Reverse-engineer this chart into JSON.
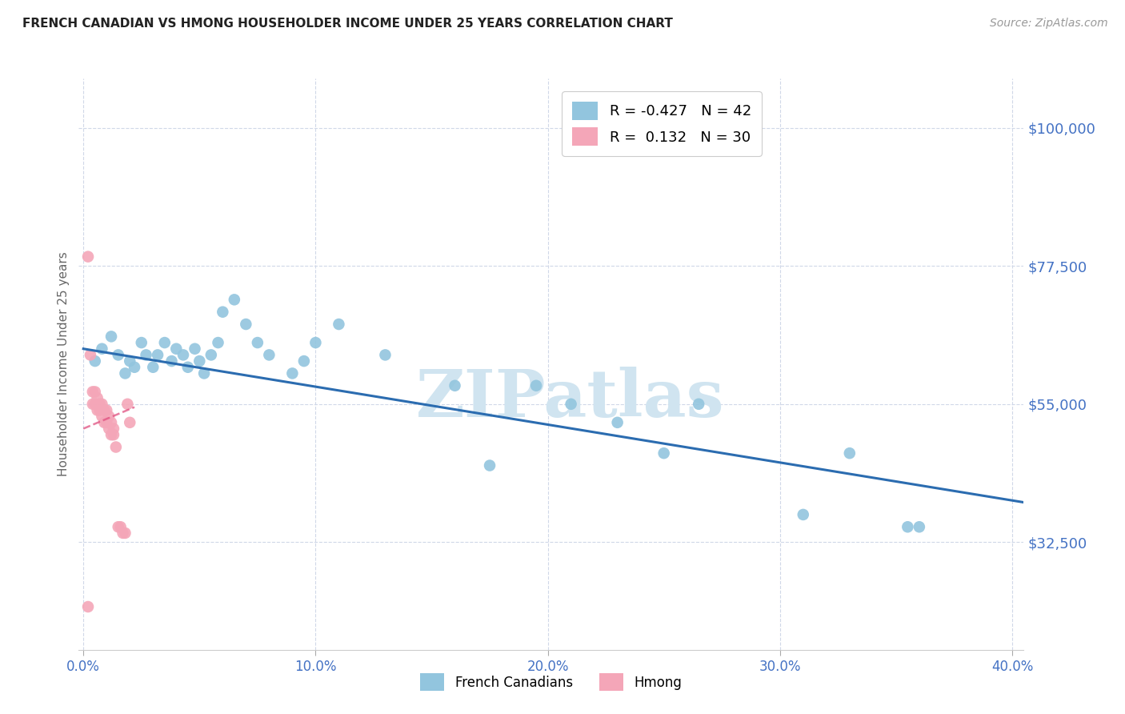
{
  "title": "FRENCH CANADIAN VS HMONG HOUSEHOLDER INCOME UNDER 25 YEARS CORRELATION CHART",
  "source": "Source: ZipAtlas.com",
  "ylabel": "Householder Income Under 25 years",
  "ytick_labels": [
    "$32,500",
    "$55,000",
    "$77,500",
    "$100,000"
  ],
  "ytick_vals": [
    32500,
    55000,
    77500,
    100000
  ],
  "ymin": 15000,
  "ymax": 108000,
  "xmin": -0.002,
  "xmax": 0.405,
  "blue_R": "-0.427",
  "blue_N": "42",
  "pink_R": "0.132",
  "pink_N": "30",
  "blue_scatter_x": [
    0.005,
    0.008,
    0.012,
    0.015,
    0.018,
    0.02,
    0.022,
    0.025,
    0.027,
    0.03,
    0.032,
    0.035,
    0.038,
    0.04,
    0.043,
    0.045,
    0.048,
    0.05,
    0.052,
    0.055,
    0.058,
    0.06,
    0.065,
    0.07,
    0.075,
    0.08,
    0.09,
    0.095,
    0.1,
    0.11,
    0.13,
    0.16,
    0.175,
    0.195,
    0.21,
    0.23,
    0.25,
    0.265,
    0.31,
    0.33,
    0.355,
    0.36
  ],
  "blue_scatter_y": [
    62000,
    64000,
    66000,
    63000,
    60000,
    62000,
    61000,
    65000,
    63000,
    61000,
    63000,
    65000,
    62000,
    64000,
    63000,
    61000,
    64000,
    62000,
    60000,
    63000,
    65000,
    70000,
    72000,
    68000,
    65000,
    63000,
    60000,
    62000,
    65000,
    68000,
    63000,
    58000,
    45000,
    58000,
    55000,
    52000,
    47000,
    55000,
    37000,
    47000,
    35000,
    35000
  ],
  "pink_scatter_x": [
    0.002,
    0.003,
    0.004,
    0.004,
    0.005,
    0.005,
    0.006,
    0.006,
    0.007,
    0.007,
    0.008,
    0.008,
    0.009,
    0.009,
    0.01,
    0.01,
    0.011,
    0.011,
    0.012,
    0.012,
    0.013,
    0.013,
    0.014,
    0.015,
    0.016,
    0.017,
    0.018,
    0.019,
    0.02,
    0.002
  ],
  "pink_scatter_y": [
    79000,
    63000,
    57000,
    55000,
    57000,
    55000,
    54000,
    56000,
    55000,
    54000,
    53000,
    55000,
    54000,
    52000,
    54000,
    52000,
    53000,
    51000,
    50000,
    52000,
    51000,
    50000,
    48000,
    35000,
    35000,
    34000,
    34000,
    55000,
    52000,
    22000
  ],
  "blue_line_x": [
    0.0,
    0.405
  ],
  "blue_line_y": [
    64000,
    39000
  ],
  "pink_line_x": [
    0.0,
    0.022
  ],
  "pink_line_y": [
    51000,
    54500
  ],
  "bg_color": "#ffffff",
  "blue_color": "#92c5de",
  "pink_color": "#f4a6b8",
  "blue_line_color": "#2b6cb0",
  "pink_line_color": "#e05080",
  "grid_color": "#d0d8e8",
  "tick_label_color": "#4472c4",
  "axis_label_color": "#666666",
  "title_color": "#222222",
  "watermark_color": "#d0e4f0",
  "watermark": "ZIPatlas",
  "legend_blue_label": "French Canadians",
  "legend_pink_label": "Hmong",
  "xtick_vals": [
    0.0,
    0.1,
    0.2,
    0.3,
    0.4
  ],
  "xtick_labels": [
    "0.0%",
    "10.0%",
    "20.0%",
    "30.0%",
    "40.0%"
  ]
}
